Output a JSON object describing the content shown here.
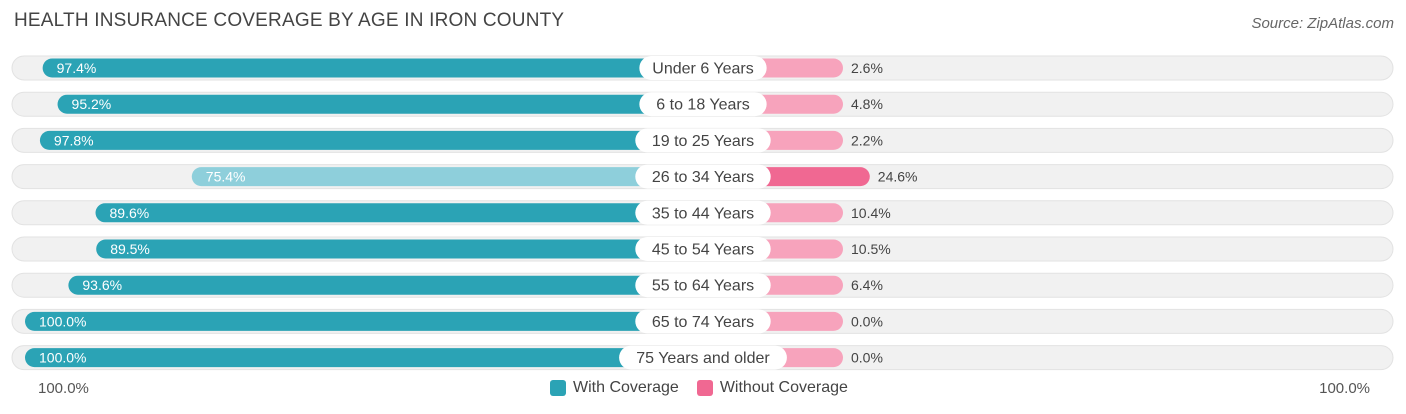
{
  "title": "HEALTH INSURANCE COVERAGE BY AGE IN IRON COUNTY",
  "source": "Source: ZipAtlas.com",
  "axis": {
    "left_label": "100.0%",
    "right_label": "100.0%"
  },
  "legend": {
    "with_label": "With Coverage",
    "without_label": "Without Coverage"
  },
  "colors": {
    "with_dark": "#2ba3b5",
    "with_light": "#8ecfdb",
    "without_dark": "#f06892",
    "without_light": "#f7a3bc",
    "row_bg": "#f1f1f1"
  },
  "chart_data": {
    "type": "bar",
    "orientation": "diverging-horizontal",
    "title": "HEALTH INSURANCE COVERAGE BY AGE IN IRON COUNTY",
    "categories": [
      "Under 6 Years",
      "6 to 18 Years",
      "19 to 25 Years",
      "26 to 34 Years",
      "35 to 44 Years",
      "45 to 54 Years",
      "55 to 64 Years",
      "65 to 74 Years",
      "75 Years and older"
    ],
    "series": [
      {
        "name": "With Coverage",
        "values": [
          97.4,
          95.2,
          97.8,
          75.4,
          89.6,
          89.5,
          93.6,
          100.0,
          100.0
        ],
        "labels": [
          "97.4%",
          "95.2%",
          "97.8%",
          "75.4%",
          "89.6%",
          "89.5%",
          "93.6%",
          "100.0%",
          "100.0%"
        ]
      },
      {
        "name": "Without Coverage",
        "values": [
          2.6,
          4.8,
          2.2,
          24.6,
          10.4,
          10.5,
          6.4,
          0.0,
          0.0
        ],
        "labels": [
          "2.6%",
          "4.8%",
          "2.2%",
          "24.6%",
          "10.4%",
          "10.5%",
          "6.4%",
          "0.0%",
          "0.0%"
        ]
      }
    ],
    "xlim": [
      -100,
      100
    ],
    "legend_position": "bottom-center"
  }
}
